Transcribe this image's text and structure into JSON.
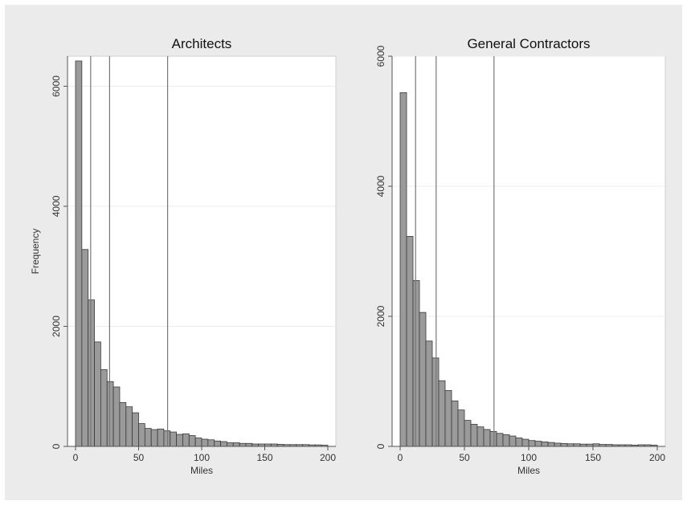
{
  "chart_data": [
    {
      "type": "bar",
      "title": "Architects",
      "xlabel": "Miles",
      "ylabel": "Frequency",
      "xlim": [
        0,
        200
      ],
      "ylim": [
        0,
        6500
      ],
      "xticks": [
        0,
        50,
        100,
        150,
        200
      ],
      "yticks": [
        0,
        2000,
        4000,
        6000
      ],
      "grid": true,
      "bin_width": 5,
      "bins_start": [
        0,
        5,
        10,
        15,
        20,
        25,
        30,
        35,
        40,
        45,
        50,
        55,
        60,
        65,
        70,
        75,
        80,
        85,
        90,
        95,
        100,
        105,
        110,
        115,
        120,
        125,
        130,
        135,
        140,
        145,
        150,
        155,
        160,
        165,
        170,
        175,
        180,
        185,
        190,
        195
      ],
      "values": [
        6420,
        3280,
        2440,
        1740,
        1280,
        1080,
        990,
        730,
        660,
        560,
        380,
        300,
        280,
        290,
        260,
        240,
        200,
        210,
        180,
        140,
        120,
        110,
        90,
        80,
        60,
        60,
        50,
        50,
        40,
        40,
        40,
        40,
        35,
        30,
        30,
        30,
        30,
        25,
        25,
        20
      ],
      "vlines": [
        12,
        27,
        73
      ]
    },
    {
      "type": "bar",
      "title": "General Contractors",
      "xlabel": "Miles",
      "ylabel": "",
      "xlim": [
        0,
        200
      ],
      "ylim": [
        0,
        6000
      ],
      "xticks": [
        0,
        50,
        100,
        150,
        200
      ],
      "yticks": [
        0,
        2000,
        4000,
        6000
      ],
      "grid": true,
      "bin_width": 5,
      "bins_start": [
        0,
        5,
        10,
        15,
        20,
        25,
        30,
        35,
        40,
        45,
        50,
        55,
        60,
        65,
        70,
        75,
        80,
        85,
        90,
        95,
        100,
        105,
        110,
        115,
        120,
        125,
        130,
        135,
        140,
        145,
        150,
        155,
        160,
        165,
        170,
        175,
        180,
        185,
        190,
        195
      ],
      "values": [
        5440,
        3230,
        2550,
        2060,
        1620,
        1360,
        1010,
        860,
        700,
        560,
        400,
        340,
        300,
        260,
        230,
        200,
        180,
        160,
        130,
        110,
        90,
        80,
        70,
        60,
        50,
        45,
        40,
        40,
        35,
        35,
        40,
        30,
        30,
        25,
        25,
        25,
        20,
        25,
        25,
        20
      ],
      "vlines": [
        12,
        28,
        73
      ]
    }
  ],
  "colors": {
    "bar_fill": "#9a9a9a",
    "bar_stroke": "#3a3a3a",
    "plot_bg": "#ffffff",
    "figure_bg": "#ebebeb",
    "vline": "#777777",
    "grid": "#ececec"
  }
}
